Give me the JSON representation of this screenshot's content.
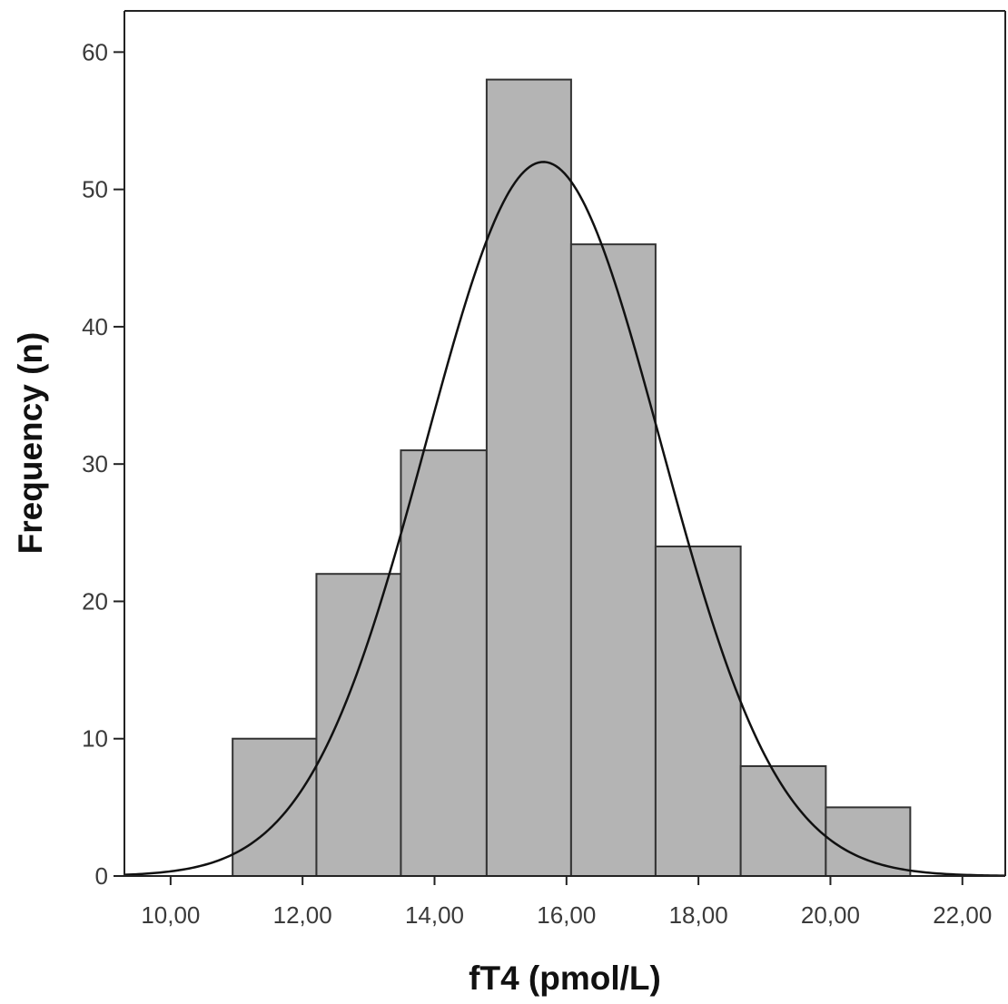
{
  "chart_data": {
    "type": "bar",
    "subtype": "histogram",
    "xlabel": "fT4 (pmol/L)",
    "ylabel": "Frequency (n)",
    "xlim": [
      9.3,
      22.65
    ],
    "ylim": [
      0,
      63
    ],
    "x_ticks": [
      10,
      12,
      14,
      16,
      18,
      20,
      22
    ],
    "x_tick_labels": [
      "10,00",
      "12,00",
      "14,00",
      "16,00",
      "18,00",
      "20,00",
      "22,00"
    ],
    "y_ticks": [
      0,
      10,
      20,
      30,
      40,
      50,
      60
    ],
    "y_tick_labels": [
      "0",
      "10",
      "20",
      "30",
      "40",
      "50",
      "60"
    ],
    "bins": [
      {
        "from": 10.94,
        "to": 12.21,
        "count": 10
      },
      {
        "from": 12.21,
        "to": 13.49,
        "count": 22
      },
      {
        "from": 13.49,
        "to": 14.79,
        "count": 31
      },
      {
        "from": 14.79,
        "to": 16.07,
        "count": 58
      },
      {
        "from": 16.07,
        "to": 17.35,
        "count": 46
      },
      {
        "from": 17.35,
        "to": 18.64,
        "count": 24
      },
      {
        "from": 18.64,
        "to": 19.93,
        "count": 8
      },
      {
        "from": 19.93,
        "to": 21.21,
        "count": 5
      }
    ],
    "normal_curve": {
      "mean": 15.65,
      "sd": 1.78,
      "peak": 52
    },
    "bar_color": "#b4b4b4",
    "curve_color": "#111111",
    "grid": false,
    "legend": "none"
  }
}
